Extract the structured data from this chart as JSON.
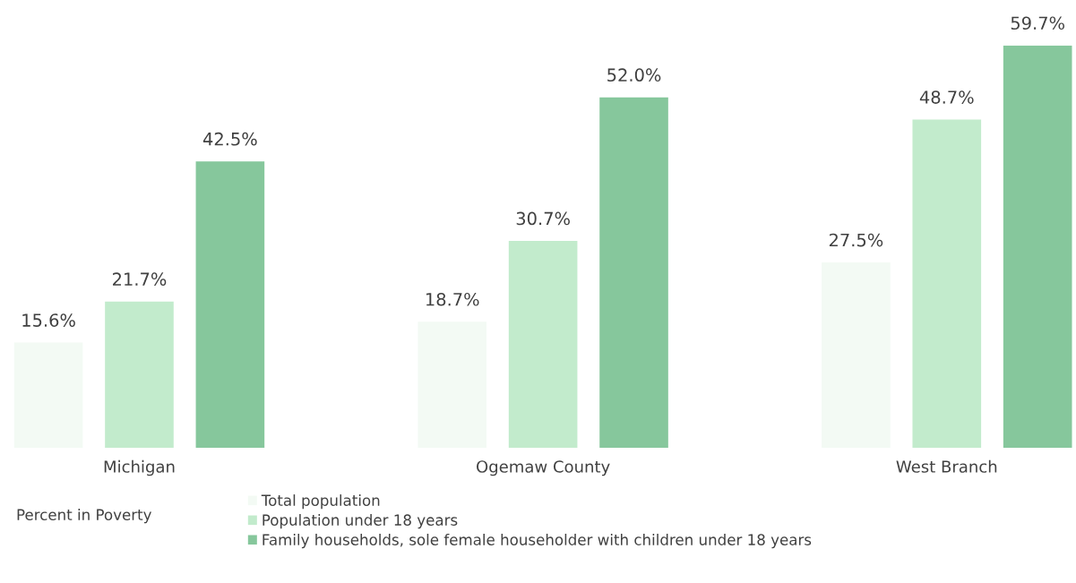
{
  "chart_data": {
    "type": "bar",
    "categories": [
      "Michigan",
      "Ogemaw County",
      "West Branch"
    ],
    "series": [
      {
        "name": "Total population",
        "color": "#f3faf4",
        "values": [
          15.6,
          18.7,
          27.5
        ],
        "value_labels": [
          "15.6%",
          "18.7%",
          "27.5%"
        ]
      },
      {
        "name": "Population under 18 years",
        "color": "#c2ebcc",
        "values": [
          21.7,
          30.7,
          48.7
        ],
        "value_labels": [
          "21.7%",
          "30.7%",
          "48.7%"
        ]
      },
      {
        "name": "Family households, sole female householder with children under 18 years",
        "color": "#86c79c",
        "values": [
          42.5,
          52.0,
          59.7
        ],
        "value_labels": [
          "42.5%",
          "52.0%",
          "59.7%"
        ]
      }
    ],
    "legend": "bottom",
    "legend_title": "Percent in Poverty",
    "grid": false
  }
}
